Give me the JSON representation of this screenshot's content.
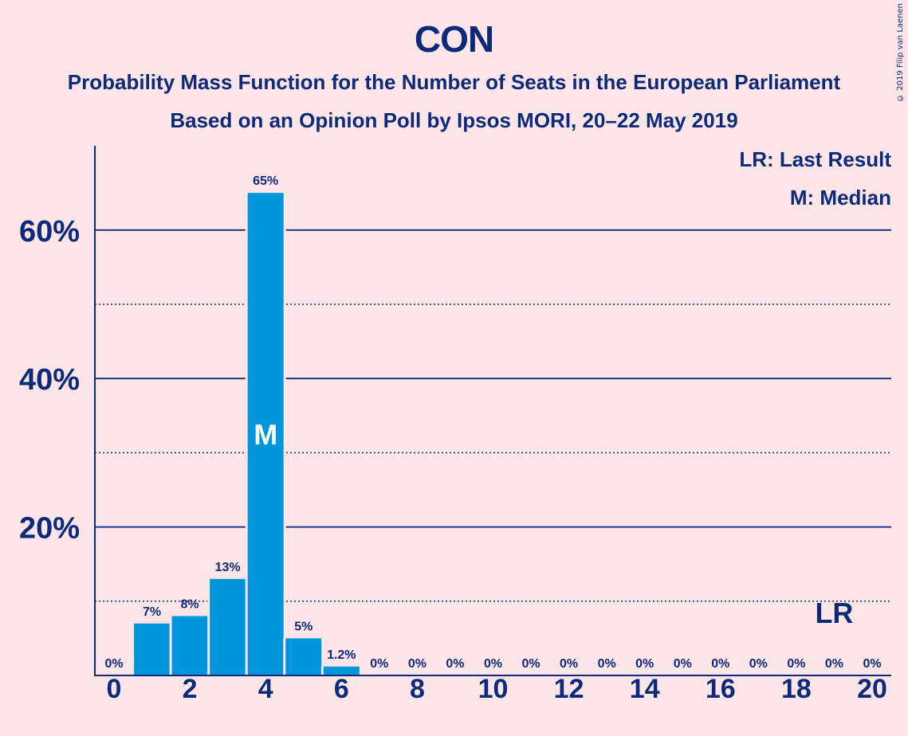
{
  "chart_data": {
    "type": "bar",
    "title": "CON",
    "subtitle": "Probability Mass Function for the Number of Seats in the European Parliament",
    "subtitle2": "Based on an Opinion Poll by Ipsos MORI, 20–22 May 2019",
    "x": [
      0,
      1,
      2,
      3,
      4,
      5,
      6,
      7,
      8,
      9,
      10,
      11,
      12,
      13,
      14,
      15,
      16,
      17,
      18,
      19,
      20
    ],
    "values": [
      0,
      7,
      8,
      13,
      65,
      5,
      1.2,
      0,
      0,
      0,
      0,
      0,
      0,
      0,
      0,
      0,
      0,
      0,
      0,
      0,
      0
    ],
    "labels": [
      "0%",
      "7%",
      "8%",
      "13%",
      "65%",
      "5%",
      "1.2%",
      "0%",
      "0%",
      "0%",
      "0%",
      "0%",
      "0%",
      "0%",
      "0%",
      "0%",
      "0%",
      "0%",
      "0%",
      "0%",
      "0%"
    ],
    "x_ticks": [
      "0",
      "2",
      "4",
      "6",
      "8",
      "10",
      "12",
      "14",
      "16",
      "18",
      "20"
    ],
    "y_ticks": [
      "20%",
      "40%",
      "60%"
    ],
    "ylim": [
      0,
      71
    ],
    "median_seat": 4,
    "median_label": "M",
    "last_result_seat": 19,
    "last_result_label": "LR",
    "legend": [
      "LR: Last Result",
      "M: Median"
    ],
    "legend_position": "top-right",
    "bar_color": "#0096dc",
    "text_color": "#0b2a7a"
  },
  "copyright": "© 2019 Filip van Laenen"
}
